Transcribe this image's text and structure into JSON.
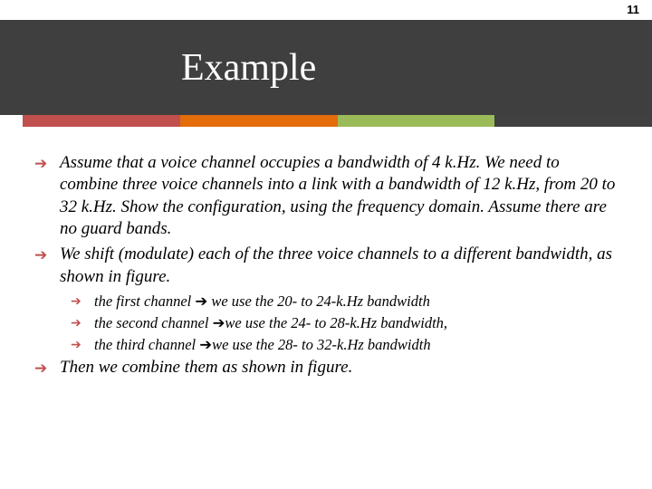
{
  "page_number": "11",
  "title": "Example",
  "colors": {
    "header_bg": "#3f3f3f",
    "header_text": "#ffffff",
    "accent_red": "#c0504d",
    "accent_orange": "#e46c0a",
    "accent_green": "#9bbb59",
    "accent_gray": "#404040",
    "bullet_arrow": "#c0504d",
    "body_text": "#000000"
  },
  "typography": {
    "title_fontsize": 42,
    "body_fontsize": 19,
    "sub_fontsize": 16.5,
    "font_family": "Georgia",
    "font_style": "italic"
  },
  "bullets": {
    "b1": "Assume that a voice channel occupies a bandwidth of 4 k.Hz. We need to combine three voice channels into a link with a bandwidth of 12 k.Hz, from 20 to 32 k.Hz. Show the configuration, using the frequency domain. Assume there are no guard bands.",
    "b2": "We shift (modulate) each of the three voice channels to a different bandwidth, as shown in figure.",
    "s1a": "the first channel ",
    "s1b": " we use the 20- to 24-k.Hz bandwidth",
    "s2a": "the second channel ",
    "s2b": "we use  the 24- to 28-k.Hz bandwidth,",
    "s3a": "the third channel ",
    "s3b": "we use the 28- to 32-k.Hz bandwidth",
    "b3": "Then we combine them as shown in figure."
  },
  "glyphs": {
    "bullet_arrow": "➔",
    "inline_arrow": "➔"
  }
}
